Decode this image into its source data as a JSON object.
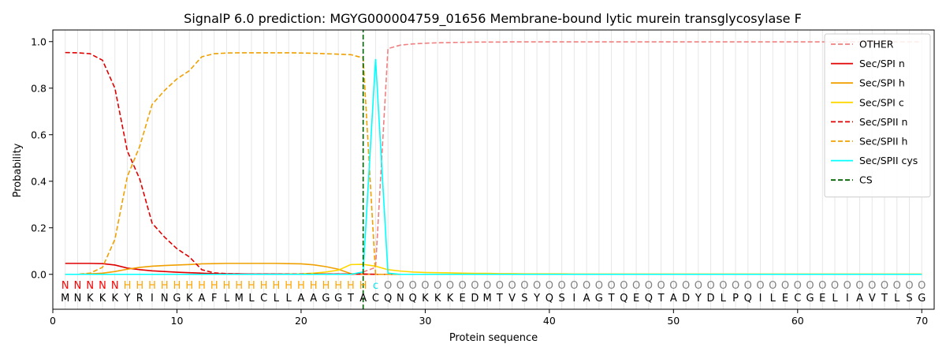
{
  "chart_data": {
    "type": "line",
    "title": "SignalP 6.0 prediction: MGYG000004759_01656 Membrane-bound lytic murein transglycosylase F",
    "xlabel": "Protein sequence",
    "ylabel": "Probability",
    "xlim": [
      0,
      71
    ],
    "ylim": [
      -0.15,
      1.05
    ],
    "xticks": [
      0,
      10,
      20,
      30,
      40,
      50,
      60,
      70
    ],
    "yticks": [
      0.0,
      0.2,
      0.4,
      0.6,
      0.8,
      1.0
    ],
    "xtick_labels": [
      "0",
      "10",
      "20",
      "30",
      "40",
      "50",
      "60",
      "70"
    ],
    "ytick_labels": [
      "0.0",
      "0.2",
      "0.4",
      "0.6",
      "0.8",
      "1.0"
    ],
    "legend_position": "top-right",
    "sequence": [
      "M",
      "N",
      "K",
      "K",
      "K",
      "Y",
      "R",
      "I",
      "N",
      "G",
      "K",
      "A",
      "F",
      "L",
      "M",
      "L",
      "C",
      "L",
      "L",
      "A",
      "A",
      "G",
      "G",
      "T",
      "A",
      "C",
      "Q",
      "N",
      "Q",
      "K",
      "K",
      "K",
      "E",
      "D",
      "M",
      "T",
      "V",
      "S",
      "Y",
      "Q",
      "S",
      "I",
      "A",
      "G",
      "T",
      "Q",
      "E",
      "Q",
      "T",
      "A",
      "D",
      "Y",
      "D",
      "L",
      "P",
      "Q",
      "I",
      "L",
      "E",
      "C",
      "G",
      "E",
      "L",
      "I",
      "A",
      "V",
      "T",
      "L",
      "S",
      "G"
    ],
    "region_labels": [
      "N",
      "N",
      "N",
      "N",
      "N",
      "H",
      "H",
      "H",
      "H",
      "H",
      "H",
      "H",
      "H",
      "H",
      "H",
      "H",
      "H",
      "H",
      "H",
      "H",
      "H",
      "H",
      "H",
      "H",
      "H",
      "c",
      "O",
      "O",
      "O",
      "O",
      "O",
      "O",
      "O",
      "O",
      "O",
      "O",
      "O",
      "O",
      "O",
      "O",
      "O",
      "O",
      "O",
      "O",
      "O",
      "O",
      "O",
      "O",
      "O",
      "O",
      "O",
      "O",
      "O",
      "O",
      "O",
      "O",
      "O",
      "O",
      "O",
      "O",
      "O",
      "O",
      "O",
      "O",
      "O",
      "O",
      "O",
      "O",
      "O",
      "O"
    ],
    "region_colors": {
      "N": "#ff0000",
      "H": "#ffa500",
      "c": "#00e5ee",
      "O": "#808080"
    },
    "cs_position": 25,
    "series": [
      {
        "name": "OTHER",
        "color": "#f08080",
        "dash": "dashed",
        "values": [
          0.0,
          0.0,
          0.0,
          0.0,
          0.0,
          0.0,
          0.0,
          0.0,
          0.0,
          0.0,
          0.0,
          0.0,
          0.0,
          0.0,
          0.0,
          0.0,
          0.0,
          0.0,
          0.0,
          0.0,
          0.0,
          0.0,
          0.0,
          0.0,
          0.01,
          0.03,
          0.97,
          0.985,
          0.99,
          0.993,
          0.995,
          0.996,
          0.997,
          0.998,
          0.998,
          0.998,
          0.999,
          0.999,
          0.999,
          0.999,
          0.999,
          0.999,
          0.999,
          0.999,
          0.999,
          0.999,
          0.999,
          0.999,
          0.999,
          0.999,
          0.999,
          0.999,
          0.999,
          0.999,
          0.999,
          0.999,
          0.999,
          0.999,
          0.999,
          0.999,
          0.999,
          0.999,
          0.999,
          0.999,
          0.999,
          0.999,
          0.999,
          0.999,
          0.999,
          0.999
        ]
      },
      {
        "name": "Sec/SPI n",
        "color": "#e00000",
        "dash": "solid",
        "values": [
          0.047,
          0.047,
          0.047,
          0.046,
          0.04,
          0.027,
          0.02,
          0.015,
          0.012,
          0.009,
          0.007,
          0.005,
          0.003,
          0.002,
          0.002,
          0.001,
          0.001,
          0.001,
          0.001,
          0.001,
          0.001,
          0.001,
          0.001,
          0.001,
          0.001,
          0.0,
          0.0,
          0.0,
          0.0,
          0.0,
          0.0,
          0.0,
          0.0,
          0.0,
          0.0,
          0.0,
          0.0,
          0.0,
          0.0,
          0.0,
          0.0,
          0.0,
          0.0,
          0.0,
          0.0,
          0.0,
          0.0,
          0.0,
          0.0,
          0.0,
          0.0,
          0.0,
          0.0,
          0.0,
          0.0,
          0.0,
          0.0,
          0.0,
          0.0,
          0.0,
          0.0,
          0.0,
          0.0,
          0.0,
          0.0,
          0.0,
          0.0,
          0.0,
          0.0,
          0.0
        ]
      },
      {
        "name": "Sec/SPI h",
        "color": "#f0a000",
        "dash": "solid",
        "values": [
          0.0,
          0.0,
          0.002,
          0.005,
          0.012,
          0.022,
          0.03,
          0.035,
          0.038,
          0.04,
          0.042,
          0.045,
          0.046,
          0.047,
          0.047,
          0.047,
          0.047,
          0.047,
          0.046,
          0.045,
          0.041,
          0.033,
          0.022,
          0.003,
          0.0,
          0.0,
          0.0,
          0.0,
          0.0,
          0.0,
          0.0,
          0.0,
          0.0,
          0.0,
          0.0,
          0.0,
          0.0,
          0.0,
          0.0,
          0.0,
          0.0,
          0.0,
          0.0,
          0.0,
          0.0,
          0.0,
          0.0,
          0.0,
          0.0,
          0.0,
          0.0,
          0.0,
          0.0,
          0.0,
          0.0,
          0.0,
          0.0,
          0.0,
          0.0,
          0.0,
          0.0,
          0.0,
          0.0,
          0.0,
          0.0,
          0.0,
          0.0,
          0.0,
          0.0,
          0.0
        ]
      },
      {
        "name": "Sec/SPI c",
        "color": "#ffd700",
        "dash": "solid",
        "values": [
          0.0,
          0.0,
          0.0,
          0.0,
          0.0,
          0.0,
          0.0,
          0.0,
          0.0,
          0.0,
          0.0,
          0.0,
          0.0,
          0.0,
          0.0,
          0.0,
          0.0,
          0.0,
          0.001,
          0.002,
          0.005,
          0.01,
          0.018,
          0.042,
          0.043,
          0.035,
          0.02,
          0.014,
          0.01,
          0.008,
          0.007,
          0.006,
          0.005,
          0.004,
          0.004,
          0.003,
          0.003,
          0.002,
          0.002,
          0.002,
          0.002,
          0.001,
          0.001,
          0.001,
          0.001,
          0.001,
          0.001,
          0.001,
          0.001,
          0.001,
          0.001,
          0.001,
          0.001,
          0.001,
          0.001,
          0.001,
          0.001,
          0.001,
          0.001,
          0.001,
          0.001,
          0.001,
          0.001,
          0.001,
          0.001,
          0.001,
          0.001,
          0.001,
          0.001,
          0.001
        ]
      },
      {
        "name": "Sec/SPII n",
        "color": "#e00000",
        "dash": "dashed",
        "values": [
          0.953,
          0.952,
          0.948,
          0.92,
          0.8,
          0.53,
          0.41,
          0.22,
          0.16,
          0.11,
          0.075,
          0.02,
          0.006,
          0.003,
          0.002,
          0.001,
          0.001,
          0.001,
          0.001,
          0.001,
          0.001,
          0.001,
          0.001,
          0.001,
          0.001,
          0.0,
          0.0,
          0.0,
          0.0,
          0.0,
          0.0,
          0.0,
          0.0,
          0.0,
          0.0,
          0.0,
          0.0,
          0.0,
          0.0,
          0.0,
          0.0,
          0.0,
          0.0,
          0.0,
          0.0,
          0.0,
          0.0,
          0.0,
          0.0,
          0.0,
          0.0,
          0.0,
          0.0,
          0.0,
          0.0,
          0.0,
          0.0,
          0.0,
          0.0,
          0.0,
          0.0,
          0.0,
          0.0,
          0.0,
          0.0,
          0.0,
          0.0,
          0.0,
          0.0,
          0.0
        ]
      },
      {
        "name": "Sec/SPII h",
        "color": "#f0a000",
        "dash": "dashed",
        "values": [
          0.0,
          0.0,
          0.005,
          0.03,
          0.15,
          0.42,
          0.55,
          0.73,
          0.79,
          0.84,
          0.875,
          0.935,
          0.948,
          0.951,
          0.952,
          0.952,
          0.952,
          0.952,
          0.952,
          0.951,
          0.95,
          0.948,
          0.946,
          0.944,
          0.93,
          0.0,
          0.0,
          0.0,
          0.0,
          0.0,
          0.0,
          0.0,
          0.0,
          0.0,
          0.0,
          0.0,
          0.0,
          0.0,
          0.0,
          0.0,
          0.0,
          0.0,
          0.0,
          0.0,
          0.0,
          0.0,
          0.0,
          0.0,
          0.0,
          0.0,
          0.0,
          0.0,
          0.0,
          0.0,
          0.0,
          0.0,
          0.0,
          0.0,
          0.0,
          0.0,
          0.0,
          0.0,
          0.0,
          0.0,
          0.0,
          0.0,
          0.0,
          0.0,
          0.0,
          0.0
        ]
      },
      {
        "name": "Sec/SPII cys",
        "color": "#00ffff",
        "dash": "solid",
        "values": [
          0.0,
          0.0,
          0.0,
          0.0,
          0.0,
          0.0,
          0.0,
          0.0,
          0.0,
          0.0,
          0.0,
          0.0,
          0.0,
          0.0,
          0.0,
          0.0,
          0.0,
          0.0,
          0.0,
          0.0,
          0.0,
          0.0,
          0.0,
          0.0,
          0.01,
          0.925,
          0.005,
          0.0,
          0.0,
          0.0,
          0.0,
          0.0,
          0.0,
          0.0,
          0.0,
          0.0,
          0.0,
          0.0,
          0.0,
          0.0,
          0.0,
          0.0,
          0.0,
          0.0,
          0.0,
          0.0,
          0.0,
          0.0,
          0.0,
          0.0,
          0.0,
          0.0,
          0.0,
          0.0,
          0.0,
          0.0,
          0.0,
          0.0,
          0.0,
          0.0,
          0.0,
          0.0,
          0.0,
          0.0,
          0.0,
          0.0,
          0.0,
          0.0,
          0.0,
          0.0
        ]
      },
      {
        "name": "CS",
        "color": "#006400",
        "dash": "dashed",
        "x": [
          25,
          25
        ],
        "values": [
          -0.15,
          1.05
        ]
      }
    ]
  }
}
